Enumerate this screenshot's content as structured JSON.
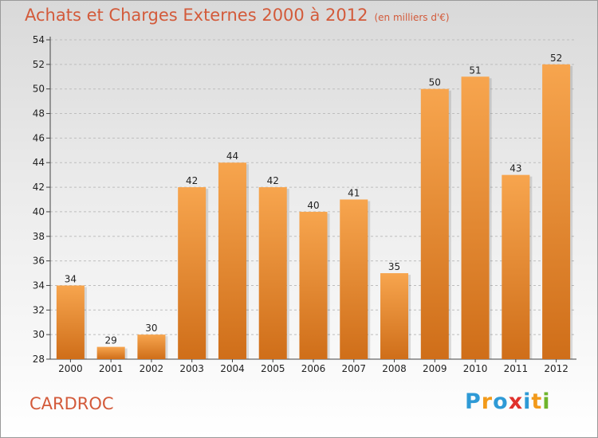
{
  "header": {
    "title": "Achats et Charges Externes 2000 à 2012",
    "subtitle": "(en milliers d'€)"
  },
  "footer": {
    "commune": "CARDROC",
    "logo_letters": [
      "P",
      "r",
      "o",
      "x",
      "i",
      "t",
      "i"
    ],
    "logo_colors": [
      "#2e9ad6",
      "#f29a1a",
      "#2e9ad6",
      "#e0312c",
      "#2e9ad6",
      "#f29a1a",
      "#6fb52c"
    ]
  },
  "colors": {
    "bar_light": "#f7a54e",
    "bar_dark": "#cf6e19",
    "title": "#d35a3a",
    "grid": "#bdbdbd"
  },
  "chart_data": {
    "type": "bar",
    "title": "Achats et Charges Externes 2000 à 2012",
    "subtitle": "(en milliers d'€)",
    "categories": [
      "2000",
      "2001",
      "2002",
      "2003",
      "2004",
      "2005",
      "2006",
      "2007",
      "2008",
      "2009",
      "2010",
      "2011",
      "2012"
    ],
    "values": [
      34,
      29,
      30,
      42,
      44,
      42,
      40,
      41,
      35,
      50,
      51,
      43,
      52
    ],
    "ylim": [
      28,
      54
    ],
    "yticks": [
      28,
      30,
      32,
      34,
      36,
      38,
      40,
      42,
      44,
      46,
      48,
      50,
      52,
      54
    ],
    "grid": true,
    "legend": "none"
  }
}
